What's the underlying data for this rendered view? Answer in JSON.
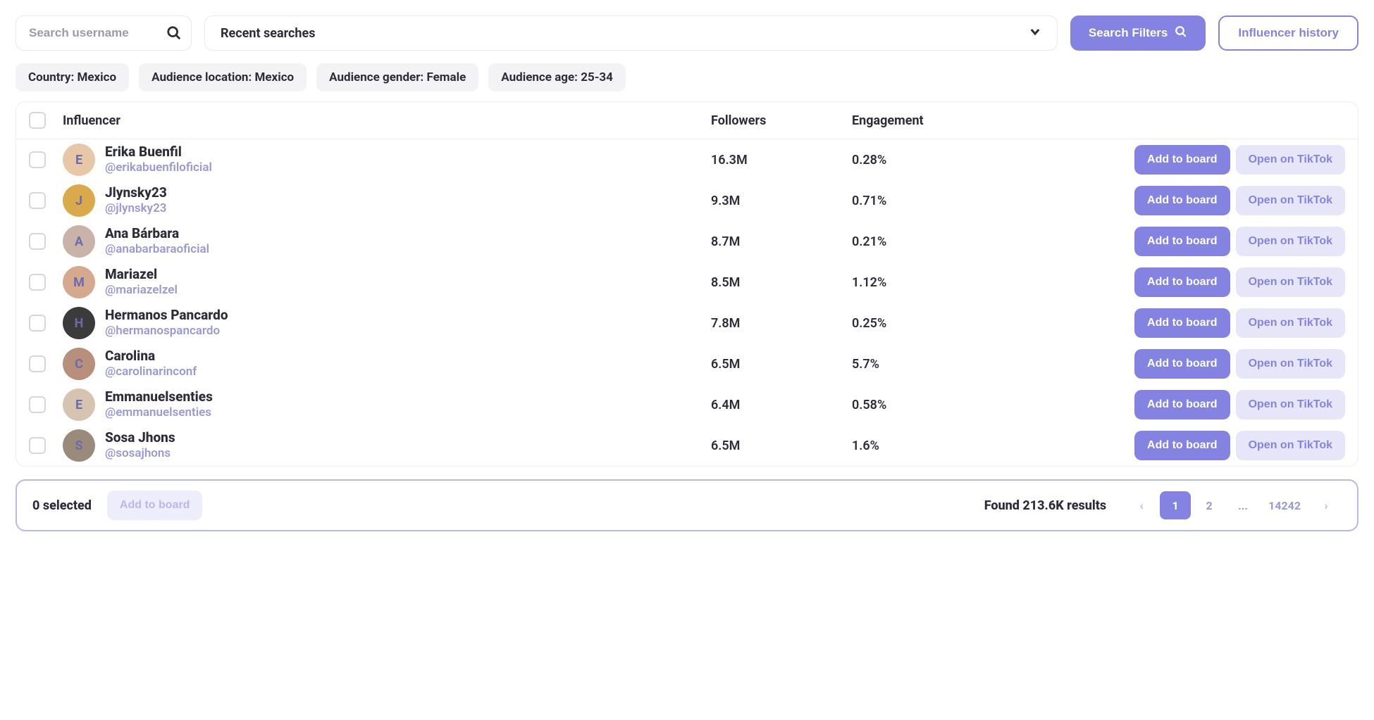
{
  "colors": {
    "primary": "#8583e1",
    "pale": "#e7e6f9",
    "chip_bg": "#f3f3f6",
    "border": "#ececf2",
    "text": "#2d2d3a",
    "muted": "#9b98d8",
    "footer_border": "#b9b7ef"
  },
  "search": {
    "placeholder": "Search username"
  },
  "recent": {
    "label": "Recent searches"
  },
  "buttons": {
    "search_filters": "Search Filters",
    "influencer_history": "Influencer history",
    "add_to_board": "Add to board",
    "open_tiktok": "Open on TikTok"
  },
  "filters": [
    "Country: Mexico",
    "Audience location: Mexico",
    "Audience gender: Female",
    "Audience age: 25-34"
  ],
  "columns": {
    "influencer": "Influencer",
    "followers": "Followers",
    "engagement": "Engagement"
  },
  "rows": [
    {
      "name": "Erika Buenfil",
      "handle": "@erikabuenfiloficial",
      "followers": "16.3M",
      "engagement": "0.28%",
      "avatar_bg": "#e8c7a8"
    },
    {
      "name": "Jlynsky23",
      "handle": "@jlynsky23",
      "followers": "9.3M",
      "engagement": "0.71%",
      "avatar_bg": "#d9a94a"
    },
    {
      "name": "Ana Bárbara",
      "handle": "@anabarbaraoficial",
      "followers": "8.7M",
      "engagement": "0.21%",
      "avatar_bg": "#c9b3a8"
    },
    {
      "name": "Mariazel",
      "handle": "@mariazelzel",
      "followers": "8.5M",
      "engagement": "1.12%",
      "avatar_bg": "#d4a98e"
    },
    {
      "name": "Hermanos Pancardo",
      "handle": "@hermanospancardo",
      "followers": "7.8M",
      "engagement": "0.25%",
      "avatar_bg": "#3b3b3b"
    },
    {
      "name": "Carolina",
      "handle": "@carolinarinconf",
      "followers": "6.5M",
      "engagement": "5.7%",
      "avatar_bg": "#b88f7a"
    },
    {
      "name": "Emmanuelsenties",
      "handle": "@emmanuelsenties",
      "followers": "6.4M",
      "engagement": "0.58%",
      "avatar_bg": "#d6c4b0"
    },
    {
      "name": "Sosa Jhons",
      "handle": "@sosajhons",
      "followers": "6.5M",
      "engagement": "1.6%",
      "avatar_bg": "#9a8a7a"
    }
  ],
  "footer": {
    "selected": "0 selected",
    "results": "Found 213.6K results",
    "pages": {
      "current": "1",
      "next": "2",
      "ellipsis": "...",
      "last": "14242"
    }
  }
}
